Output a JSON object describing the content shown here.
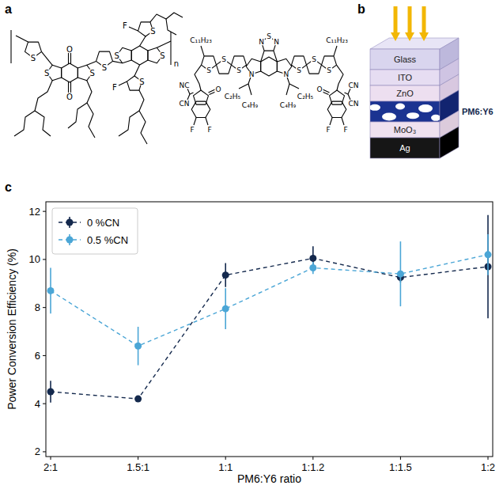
{
  "figure": {
    "panel_labels": [
      "a",
      "b",
      "c"
    ]
  },
  "structures": {
    "pm6": {
      "labels": [
        "S",
        "S",
        "S",
        "S",
        "S",
        "S",
        "S",
        "S",
        "O",
        "O",
        "F",
        "F",
        "n"
      ]
    },
    "y6": {
      "labels": [
        "S",
        "N",
        "N",
        "N",
        "N",
        "S",
        "S",
        "S",
        "S",
        "S",
        "S",
        "C₁₁H₂₃",
        "C₁₁H₂₃",
        "C₂H₅",
        "C₄H₉",
        "C₂H₅",
        "C₄H₉",
        "NC",
        "CN",
        "CN",
        "CN",
        "O",
        "O",
        "F",
        "F",
        "F",
        "F"
      ]
    }
  },
  "device": {
    "layers": [
      "Glass",
      "ITO",
      "ZnO",
      "PM6:Y6",
      "MoO₃",
      "Ag"
    ]
  },
  "chart_data": {
    "type": "line",
    "x_label": "PM6:Y6 ratio",
    "y_label": "Power Conversion Efficiency (%)",
    "categories": [
      "2:1",
      "1.5:1",
      "1:1",
      "1:1.2",
      "1:1.5",
      "1:2"
    ],
    "ylim": [
      1.8,
      12.4
    ],
    "yticks": [
      2,
      4,
      6,
      8,
      10,
      12
    ],
    "grid": false,
    "legend": "upper left",
    "series": [
      {
        "name": "0 %CN",
        "color": "#14294d",
        "marker": "circle",
        "line_style": "dashed",
        "values": [
          4.5,
          4.2,
          9.35,
          10.05,
          9.25,
          9.7
        ],
        "errors": [
          0.45,
          0.05,
          0.5,
          0.5,
          0.2,
          2.15
        ]
      },
      {
        "name": "0.5 %CN",
        "color": "#4ba6d6",
        "marker": "circle",
        "line_style": "dashed",
        "values": [
          8.7,
          6.4,
          7.95,
          9.65,
          9.4,
          10.2
        ],
        "errors": [
          0.95,
          0.8,
          0.85,
          0.25,
          1.35,
          0.85
        ]
      }
    ]
  }
}
